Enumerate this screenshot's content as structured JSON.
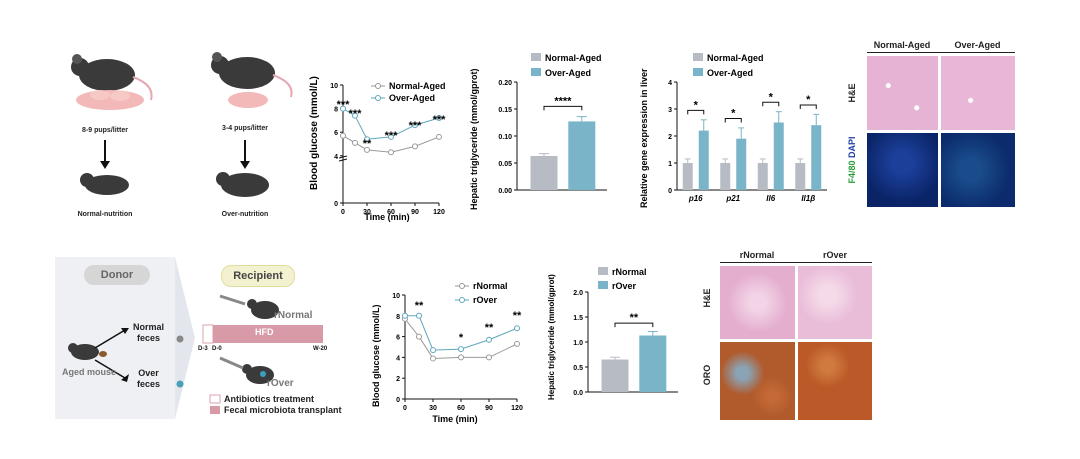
{
  "panel_top_left": {
    "mouse1_label": "8-9 pups/litter",
    "mouse2_label": "3-4 pups/litter",
    "outcome1": "Normal-nutrition",
    "outcome2": "Over-nutrition"
  },
  "panel_bottom_left": {
    "donor": "Donor",
    "recipient": "Recipient",
    "aged_mouse": "Aged mouse",
    "normal_feces": "Normal",
    "normal_feces2": "feces",
    "over_feces": "Over",
    "over_feces2": "feces",
    "rnormal": "rNormal",
    "rover": "rOver",
    "hfd": "HFD",
    "d3": "D-3",
    "d0": "D-0",
    "w20": "W-20",
    "legend_abx": "Antibiotics treatment",
    "legend_fmt": "Fecal microbiota transplant"
  },
  "colors": {
    "normal": "#b7bcc4",
    "over": "#79b4c8",
    "he_pink": "#e9b7d6",
    "dapi": "#0b2a6e",
    "oro": "#b65a2a"
  },
  "chart_data": [
    {
      "id": "top_glucose",
      "type": "line",
      "xlabel": "Time (min)",
      "ylabel": "Blood glucose (mmol/L)",
      "x": [
        0,
        15,
        30,
        60,
        90,
        120
      ],
      "yticks": [
        "0",
        "4",
        "6",
        "8",
        "10"
      ],
      "xticks": [
        "0",
        "30",
        "60",
        "90",
        "120"
      ],
      "series": [
        {
          "name": "Normal-Aged",
          "values": [
            5.7,
            5.1,
            4.5,
            4.3,
            4.8,
            5.6
          ]
        },
        {
          "name": "Over-Aged",
          "values": [
            8.0,
            7.4,
            5.4,
            5.6,
            6.6,
            7.2
          ]
        }
      ],
      "annotations": [
        "***",
        "***",
        "**",
        "***",
        "***",
        "***"
      ]
    },
    {
      "id": "top_tg",
      "type": "bar",
      "ylabel": "Hepatic triglyceride (mmol/gprot)",
      "categories": [
        "Normal-Aged",
        "Over-Aged"
      ],
      "values": [
        0.063,
        0.127
      ],
      "yticks": [
        "0.00",
        "0.05",
        "0.10",
        "0.15",
        "0.20"
      ],
      "ylim": [
        0,
        0.2
      ],
      "annotation": "****"
    },
    {
      "id": "top_gene",
      "type": "bar",
      "ylabel": "Relative gene expression in liver",
      "categories": [
        "p16",
        "p21",
        "Il6",
        "Il1β"
      ],
      "series": [
        {
          "name": "Normal-Aged",
          "values": [
            1.0,
            1.0,
            1.0,
            1.0
          ]
        },
        {
          "name": "Over-Aged",
          "values": [
            2.2,
            1.9,
            2.5,
            2.4
          ]
        }
      ],
      "yticks": [
        "0",
        "1",
        "2",
        "3",
        "4"
      ],
      "ylim": [
        0,
        4
      ],
      "annotations": [
        "*",
        "*",
        "*",
        "*"
      ]
    },
    {
      "id": "bottom_glucose",
      "type": "line",
      "xlabel": "Time (min)",
      "ylabel": "Blood glucose (mmol/L)",
      "x": [
        0,
        15,
        30,
        60,
        90,
        120
      ],
      "yticks": [
        "0",
        "2",
        "4",
        "6",
        "8",
        "10"
      ],
      "xticks": [
        "0",
        "30",
        "60",
        "90",
        "120"
      ],
      "series": [
        {
          "name": "rNormal",
          "values": [
            7.7,
            6.0,
            3.9,
            4.0,
            4.0,
            5.3
          ]
        },
        {
          "name": "rOver",
          "values": [
            8.0,
            8.0,
            4.7,
            4.8,
            5.7,
            6.8
          ]
        }
      ],
      "annotations": [
        "**",
        "*",
        "**",
        "**"
      ]
    },
    {
      "id": "bottom_tg",
      "type": "bar",
      "ylabel": "Hepatic triglyceride (mmol/gprot)",
      "categories": [
        "rNormal",
        "rOver"
      ],
      "values": [
        0.65,
        1.13
      ],
      "yticks": [
        "0.0",
        "0.5",
        "1.0",
        "1.5",
        "2.0"
      ],
      "ylim": [
        0,
        2.0
      ],
      "annotation": "**"
    }
  ],
  "histology_top": {
    "col1": "Normal-Aged",
    "col2": "Over-Aged",
    "row1": "H&E",
    "row2_a": "F4/80",
    "row2_b": "DAPI"
  },
  "histology_bottom": {
    "col1": "rNormal",
    "col2": "rOver",
    "row1": "H&E",
    "row2": "ORO"
  }
}
